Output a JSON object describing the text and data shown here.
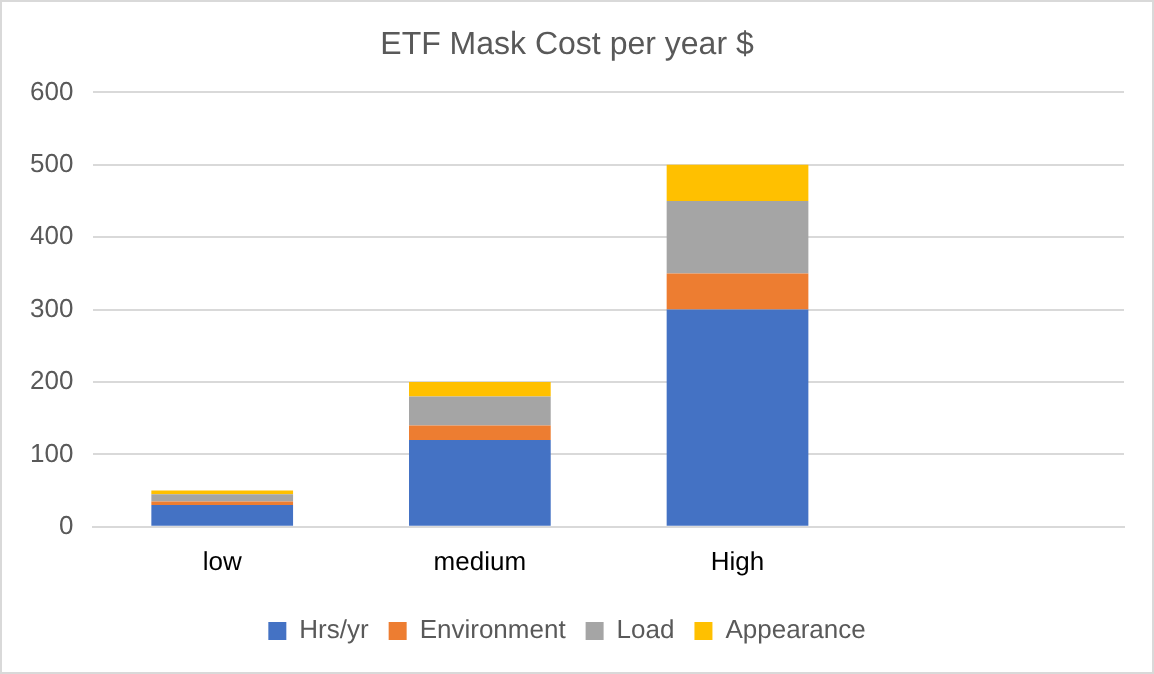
{
  "chart_data": {
    "type": "bar",
    "title": "ETF Mask Cost per year $",
    "categories": [
      "low",
      "medium",
      "High",
      null
    ],
    "stacked": true,
    "series": [
      {
        "name": "Hrs/yr",
        "color": "#4472c4",
        "values": [
          30,
          120,
          300,
          null
        ]
      },
      {
        "name": "Environment",
        "color": "#ed7d31",
        "values": [
          5,
          20,
          50,
          null
        ]
      },
      {
        "name": "Load",
        "color": "#a5a5a5",
        "values": [
          10,
          40,
          100,
          null
        ]
      },
      {
        "name": "Appearance",
        "color": "#ffc000",
        "values": [
          5,
          20,
          50,
          null
        ]
      }
    ],
    "ylim": [
      0,
      600
    ],
    "yticks": [
      0,
      100,
      200,
      300,
      400,
      500,
      600
    ],
    "grid": "y",
    "legend": "bottom"
  }
}
